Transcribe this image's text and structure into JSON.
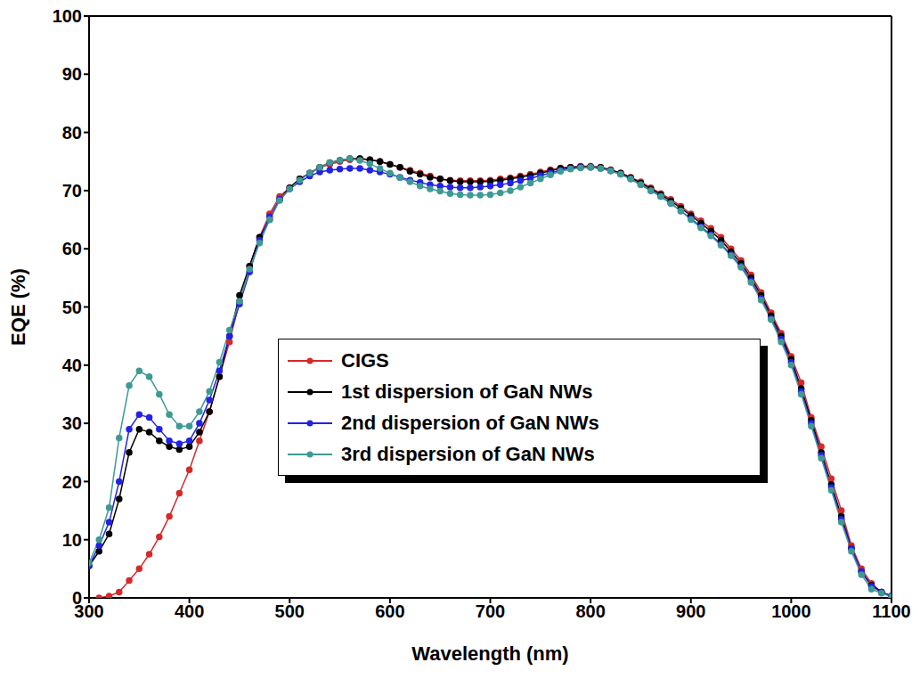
{
  "chart_data": {
    "type": "line",
    "x_label": "Wavelength (nm)",
    "y_label": "EQE (%)",
    "xlim": [
      300,
      1100
    ],
    "xticks": [
      300,
      400,
      500,
      600,
      700,
      800,
      900,
      1000,
      1100
    ],
    "ylim": [
      0,
      100
    ],
    "yticks": [
      0,
      10,
      20,
      30,
      40,
      50,
      60,
      70,
      80,
      90,
      100
    ],
    "grid": false,
    "marker": "circle",
    "x": [
      300,
      310,
      320,
      330,
      340,
      350,
      360,
      370,
      380,
      390,
      400,
      410,
      420,
      430,
      440,
      450,
      460,
      470,
      480,
      490,
      500,
      510,
      520,
      530,
      540,
      550,
      560,
      570,
      580,
      590,
      600,
      610,
      620,
      630,
      640,
      650,
      660,
      670,
      680,
      690,
      700,
      710,
      720,
      730,
      740,
      750,
      760,
      770,
      780,
      790,
      800,
      810,
      820,
      830,
      840,
      850,
      860,
      870,
      880,
      890,
      900,
      910,
      920,
      930,
      940,
      950,
      960,
      970,
      980,
      990,
      1000,
      1010,
      1020,
      1030,
      1040,
      1050,
      1060,
      1070,
      1080,
      1090,
      1100
    ],
    "series": [
      {
        "name": "CIGS",
        "color": "#d42a2a",
        "values": [
          null,
          0,
          0.3,
          1,
          3,
          5,
          7.5,
          10.5,
          14,
          18,
          22,
          27,
          32,
          38,
          44,
          51,
          57,
          62,
          66,
          69,
          70.5,
          72,
          73,
          74,
          74.5,
          75,
          75.3,
          75.5,
          75.3,
          75,
          74.5,
          74,
          73.5,
          73,
          72.5,
          72,
          71.8,
          71.7,
          71.7,
          71.7,
          71.8,
          72,
          72.2,
          72.5,
          72.8,
          73.2,
          73.6,
          73.9,
          74,
          74.2,
          74.2,
          74,
          73.6,
          73,
          72.3,
          71.5,
          70.5,
          69.5,
          68.5,
          67.3,
          66,
          64.8,
          63.5,
          62,
          60,
          58,
          55.5,
          52.5,
          49,
          45.5,
          41.5,
          37,
          31,
          26,
          20.5,
          15,
          9,
          5,
          2.5,
          1,
          0.3
        ]
      },
      {
        "name": "1st dispersion of GaN NWs",
        "color": "#000000",
        "values": [
          5.5,
          8,
          11,
          17,
          25,
          29,
          28.5,
          27,
          26,
          25.5,
          26,
          28.5,
          32,
          38,
          45,
          52,
          57,
          62,
          65,
          68.5,
          70.5,
          72,
          73,
          74,
          74.8,
          75.2,
          75.5,
          75.5,
          75.3,
          75,
          74.5,
          74,
          73.3,
          72.8,
          72.3,
          72,
          71.7,
          71.5,
          71.5,
          71.5,
          71.6,
          71.8,
          72,
          72.3,
          72.6,
          73,
          73.4,
          73.8,
          74,
          74.1,
          74.1,
          74,
          73.5,
          73,
          72.2,
          71.3,
          70.3,
          69.3,
          68.2,
          67,
          65.7,
          64.4,
          63,
          61.5,
          59.5,
          57.5,
          55,
          52,
          48.5,
          45,
          41,
          36,
          30.5,
          25,
          19.5,
          14,
          8.5,
          4.5,
          2.2,
          1,
          0.3
        ]
      },
      {
        "name": "2nd dispersion of GaN NWs",
        "color": "#2222e6",
        "values": [
          5.5,
          9,
          13,
          20,
          29,
          31.5,
          31,
          29,
          27,
          26.5,
          27,
          30,
          34,
          39,
          45,
          50.5,
          56,
          61.5,
          65.5,
          68.5,
          70.3,
          71.5,
          72.5,
          73.2,
          73.5,
          73.7,
          73.8,
          73.8,
          73.5,
          73.2,
          72.8,
          72.3,
          71.8,
          71.4,
          71,
          70.8,
          70.6,
          70.5,
          70.5,
          70.6,
          70.8,
          71,
          71.3,
          71.7,
          72.1,
          72.6,
          73,
          73.5,
          73.8,
          74,
          74,
          73.8,
          73.4,
          72.8,
          72,
          71,
          70,
          69,
          67.8,
          66.5,
          65.2,
          63.8,
          62.4,
          60.8,
          59,
          57,
          54.5,
          51.5,
          48,
          44.5,
          40.5,
          35.5,
          30,
          24.5,
          19,
          13.5,
          8.5,
          4.5,
          2,
          1,
          0.3
        ]
      },
      {
        "name": "3rd dispersion of GaN NWs",
        "color": "#3d9a94",
        "values": [
          6,
          10,
          15.5,
          27.5,
          36.5,
          39,
          38,
          35,
          31.5,
          29.5,
          29.5,
          32,
          35.5,
          40.5,
          46,
          51,
          56.5,
          61,
          65,
          68.3,
          70.3,
          71.8,
          73,
          74,
          74.8,
          75.2,
          75.5,
          75.2,
          74.6,
          73.8,
          73,
          72.2,
          71.5,
          70.8,
          70.3,
          69.9,
          69.5,
          69.3,
          69.2,
          69.2,
          69.3,
          69.6,
          70,
          70.6,
          71.3,
          72,
          72.7,
          73.3,
          73.7,
          73.9,
          74,
          73.8,
          73.4,
          72.8,
          72,
          71,
          70,
          69,
          67.8,
          66.5,
          65,
          63.6,
          62.2,
          60.6,
          58.8,
          56.8,
          54.2,
          51.2,
          47.8,
          44,
          40,
          35,
          29.5,
          24,
          18.5,
          13,
          8,
          4,
          1.5,
          0.8,
          0.2
        ]
      }
    ]
  }
}
